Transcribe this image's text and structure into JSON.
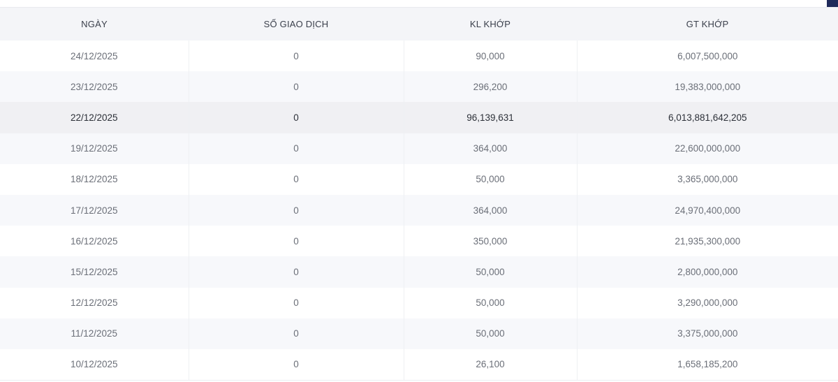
{
  "table": {
    "headers": {
      "date": "NGÀY",
      "trades": "SỐ GIAO DỊCH",
      "volume": "KL KHỚP",
      "value": "GT KHỚP"
    },
    "rows": [
      {
        "date": "24/12/2025",
        "trades": "0",
        "volume": "90,000",
        "value": "6,007,500,000"
      },
      {
        "date": "23/12/2025",
        "trades": "0",
        "volume": "296,200",
        "value": "19,383,000,000"
      },
      {
        "date": "22/12/2025",
        "trades": "0",
        "volume": "96,139,631",
        "value": "6,013,881,642,205"
      },
      {
        "date": "19/12/2025",
        "trades": "0",
        "volume": "364,000",
        "value": "22,600,000,000"
      },
      {
        "date": "18/12/2025",
        "trades": "0",
        "volume": "50,000",
        "value": "3,365,000,000"
      },
      {
        "date": "17/12/2025",
        "trades": "0",
        "volume": "364,000",
        "value": "24,970,400,000"
      },
      {
        "date": "16/12/2025",
        "trades": "0",
        "volume": "350,000",
        "value": "21,935,300,000"
      },
      {
        "date": "15/12/2025",
        "trades": "0",
        "volume": "50,000",
        "value": "2,800,000,000"
      },
      {
        "date": "12/12/2025",
        "trades": "0",
        "volume": "50,000",
        "value": "3,290,000,000"
      },
      {
        "date": "11/12/2025",
        "trades": "0",
        "volume": "50,000",
        "value": "3,375,000,000"
      },
      {
        "date": "10/12/2025",
        "trades": "0",
        "volume": "26,100",
        "value": "1,658,185,200"
      }
    ]
  },
  "colors": {
    "header_bg": "#f4f5f8",
    "row_alt_bg": "#f7f8fb",
    "row_highlight_bg": "#f0f0f3",
    "corner_accent": "#1f2a5a"
  }
}
